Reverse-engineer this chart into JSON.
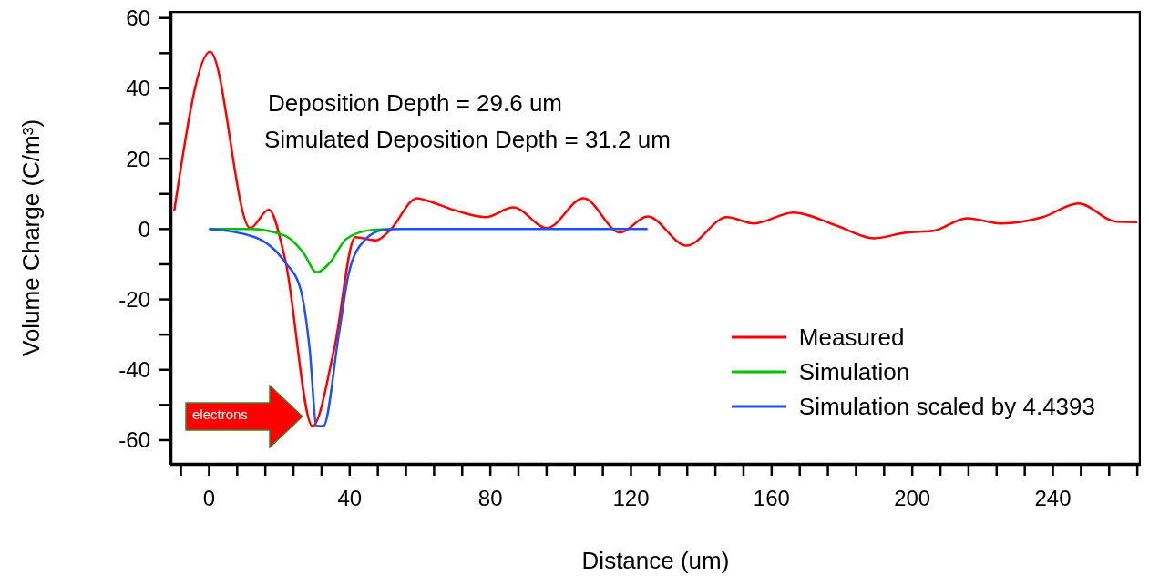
{
  "chart_data": {
    "type": "line",
    "xlabel": "Distance (um)",
    "ylabel": "Volume Charge (C/m³)",
    "xlim": [
      -11,
      265
    ],
    "ylim": [
      -67,
      62
    ],
    "xticks": [
      {
        "value": -8,
        "label": null
      },
      0,
      {
        "value": 8,
        "label": null
      },
      {
        "value": 16,
        "label": null
      },
      {
        "value": 24,
        "label": null
      },
      {
        "value": 32,
        "label": null
      },
      40,
      {
        "value": 48,
        "label": null
      },
      {
        "value": 56,
        "label": null
      },
      {
        "value": 64,
        "label": null
      },
      {
        "value": 72,
        "label": null
      },
      80,
      {
        "value": 88,
        "label": null
      },
      {
        "value": 96,
        "label": null
      },
      {
        "value": 104,
        "label": null
      },
      {
        "value": 112,
        "label": null
      },
      120,
      {
        "value": 128,
        "label": null
      },
      {
        "value": 136,
        "label": null
      },
      {
        "value": 144,
        "label": null
      },
      {
        "value": 152,
        "label": null
      },
      160,
      {
        "value": 168,
        "label": null
      },
      {
        "value": 176,
        "label": null
      },
      {
        "value": 184,
        "label": null
      },
      {
        "value": 192,
        "label": null
      },
      200,
      {
        "value": 208,
        "label": null
      },
      {
        "value": 216,
        "label": null
      },
      {
        "value": 224,
        "label": null
      },
      {
        "value": 232,
        "label": null
      },
      240,
      {
        "value": 248,
        "label": null
      },
      {
        "value": 256,
        "label": null
      },
      {
        "value": 264,
        "label": null
      }
    ],
    "yticks": [
      -60,
      {
        "value": -50,
        "label": null
      },
      -40,
      {
        "value": -30,
        "label": null
      },
      -20,
      {
        "value": -10,
        "label": null
      },
      0,
      {
        "value": 10,
        "label": null
      },
      20,
      {
        "value": 30,
        "label": null
      },
      40,
      {
        "value": 50,
        "label": null
      },
      60
    ],
    "legend": "bottom right",
    "marker": "none",
    "line_style": "solid",
    "annotations": [
      "Deposition Depth = 29.6 um",
      "Simulated Deposition Depth = 31.2 um",
      "electrons"
    ],
    "series": [
      {
        "name": "Measured",
        "color": "#ff0000",
        "x": [
          -9.9,
          0.3,
          11.7,
          17,
          21.6,
          29.4,
          35.6,
          41.6,
          47.5,
          51.2,
          59.2,
          62.3,
          69.4,
          78.7,
          86.5,
          96.1,
          106.5,
          116.9,
          124.7,
          135.8,
          147.3,
          155,
          166.2,
          178.4,
          189.1,
          198.2,
          206,
          215.6,
          225.2,
          237.1,
          247.3,
          258,
          264
        ],
        "values": [
          5.2,
          50.4,
          0.3,
          5.5,
          -8.4,
          -56,
          -34,
          -2.3,
          -3.2,
          -0.6,
          8.8,
          8,
          5.5,
          3.4,
          6.2,
          0.3,
          8.8,
          -1,
          3.6,
          -4.7,
          3.4,
          1.6,
          4.7,
          1,
          -2.6,
          -1,
          -0.5,
          3.1,
          1.6,
          3.4,
          7.3,
          2.1,
          2
        ]
      },
      {
        "name": "Simulation",
        "color": "#00c000",
        "x": [
          0,
          11.7,
          21.6,
          26.8,
          30.6,
          34.5,
          39,
          46,
          52
        ],
        "values": [
          0,
          0,
          -1.9,
          -6.7,
          -12.3,
          -9.4,
          -2.8,
          -0.3,
          0
        ]
      },
      {
        "name": "Simulation scaled by 4.4393",
        "color": "#1f4fff",
        "x": [
          0,
          13,
          21.6,
          26,
          28.6,
          30.6,
          32.5,
          36.9,
          39.7,
          44.2,
          49.4,
          55,
          124.7
        ],
        "values": [
          0,
          -2.3,
          -9.4,
          -17,
          -34,
          -56,
          -56,
          -30,
          -12.7,
          -3.2,
          -0.3,
          0,
          0
        ]
      }
    ]
  }
}
